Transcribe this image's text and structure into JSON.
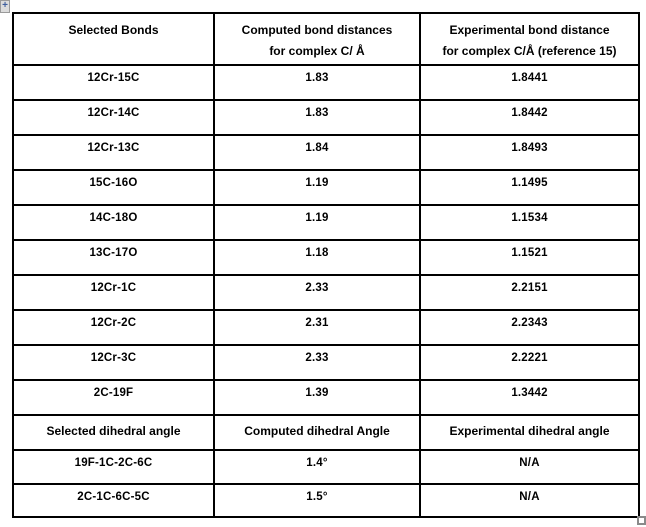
{
  "colors": {
    "table_border": "#000000",
    "text": "#000000",
    "move_handle_bg": "#dcdcdc",
    "handle_border": "#8a8a8a"
  },
  "icons": {
    "move_handle_glyph": "+"
  },
  "table": {
    "headers": [
      {
        "lines": [
          "Selected Bonds",
          ""
        ]
      },
      {
        "lines": [
          "Computed bond distances",
          "for complex C/ Å"
        ]
      },
      {
        "lines": [
          "Experimental bond distance",
          "for complex C/Å (reference 15)"
        ]
      }
    ],
    "bond_rows": [
      [
        "12Cr-15C",
        "1.83",
        "1.8441"
      ],
      [
        "12Cr-14C",
        "1.83",
        "1.8442"
      ],
      [
        "12Cr-13C",
        "1.84",
        "1.8493"
      ],
      [
        "15C-16O",
        "1.19",
        "1.1495"
      ],
      [
        "14C-18O",
        "1.19",
        "1.1534"
      ],
      [
        "13C-17O",
        "1.18",
        "1.1521"
      ],
      [
        "12Cr-1C",
        "2.33",
        "2.2151"
      ],
      [
        "12Cr-2C",
        "2.31",
        "2.2343"
      ],
      [
        "12Cr-3C",
        "2.33",
        "2.2221"
      ],
      [
        "2C-19F",
        "1.39",
        "1.3442"
      ]
    ],
    "dihedral_header": [
      "Selected dihedral angle",
      "Computed dihedral Angle",
      "Experimental dihedral angle"
    ],
    "dihedral_rows": [
      [
        "19F-1C-2C-6C",
        "1.4°",
        "N/A"
      ],
      [
        "2C-1C-6C-5C",
        "1.5°",
        "N/A"
      ]
    ]
  }
}
